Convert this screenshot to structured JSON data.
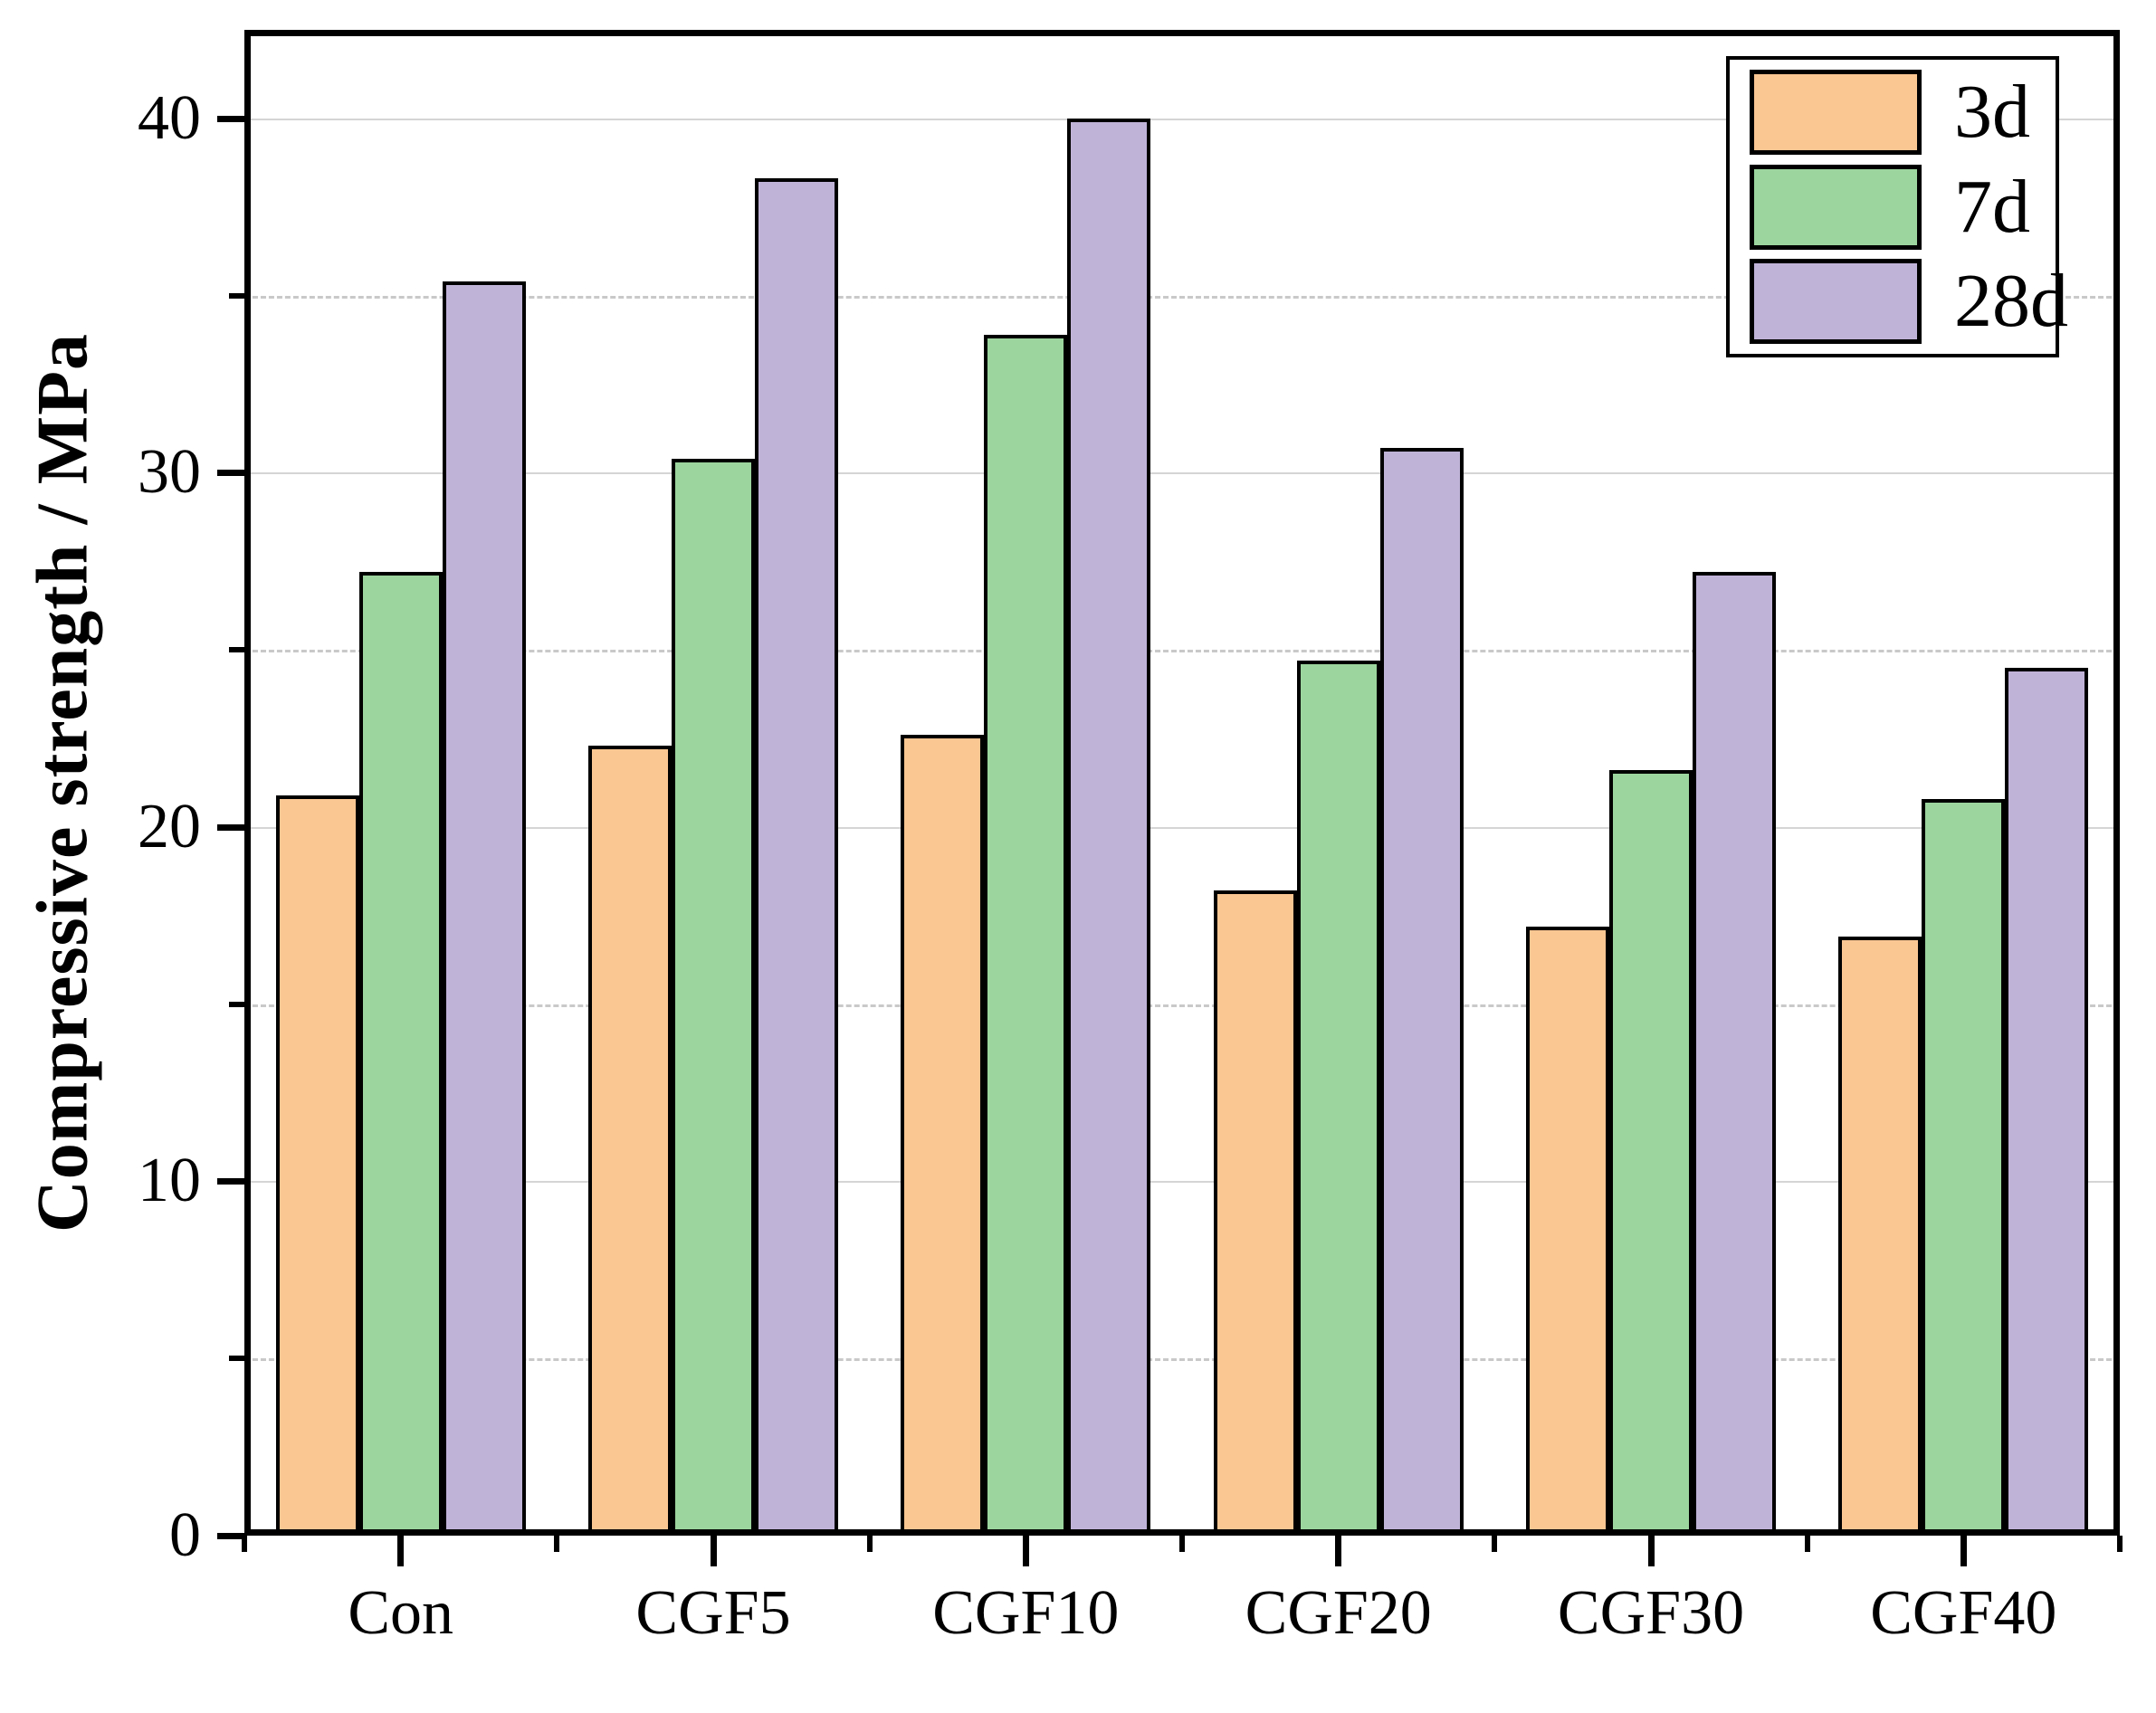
{
  "chart_data": {
    "type": "bar",
    "title": "",
    "xlabel": "",
    "ylabel": "Compressive strength / MPa",
    "categories": [
      "Con",
      "CGF5",
      "CGF10",
      "CGF20",
      "CGF30",
      "CGF40"
    ],
    "series": [
      {
        "name": "3d",
        "color": "#FAC692",
        "values": [
          20.9,
          22.3,
          22.6,
          18.2,
          17.2,
          16.9
        ]
      },
      {
        "name": "7d",
        "color": "#9CD59E",
        "values": [
          27.2,
          30.4,
          33.9,
          24.7,
          21.6,
          20.8
        ]
      },
      {
        "name": "28d",
        "color": "#C0B3D8",
        "values": [
          35.4,
          38.3,
          40.0,
          30.7,
          27.2,
          24.5
        ]
      }
    ],
    "ylim": [
      0,
      42.5
    ],
    "yticks_major": [
      0,
      10,
      20,
      30,
      40
    ],
    "ytick_labels": [
      "0",
      "10",
      "20",
      "30",
      "40"
    ],
    "yticks_minor": [
      5,
      15,
      25,
      35
    ],
    "grid": "solid gray at major ticks, dashed gray at minor ticks",
    "legend_position": "top-right",
    "bar_edge_color": "#000000"
  }
}
